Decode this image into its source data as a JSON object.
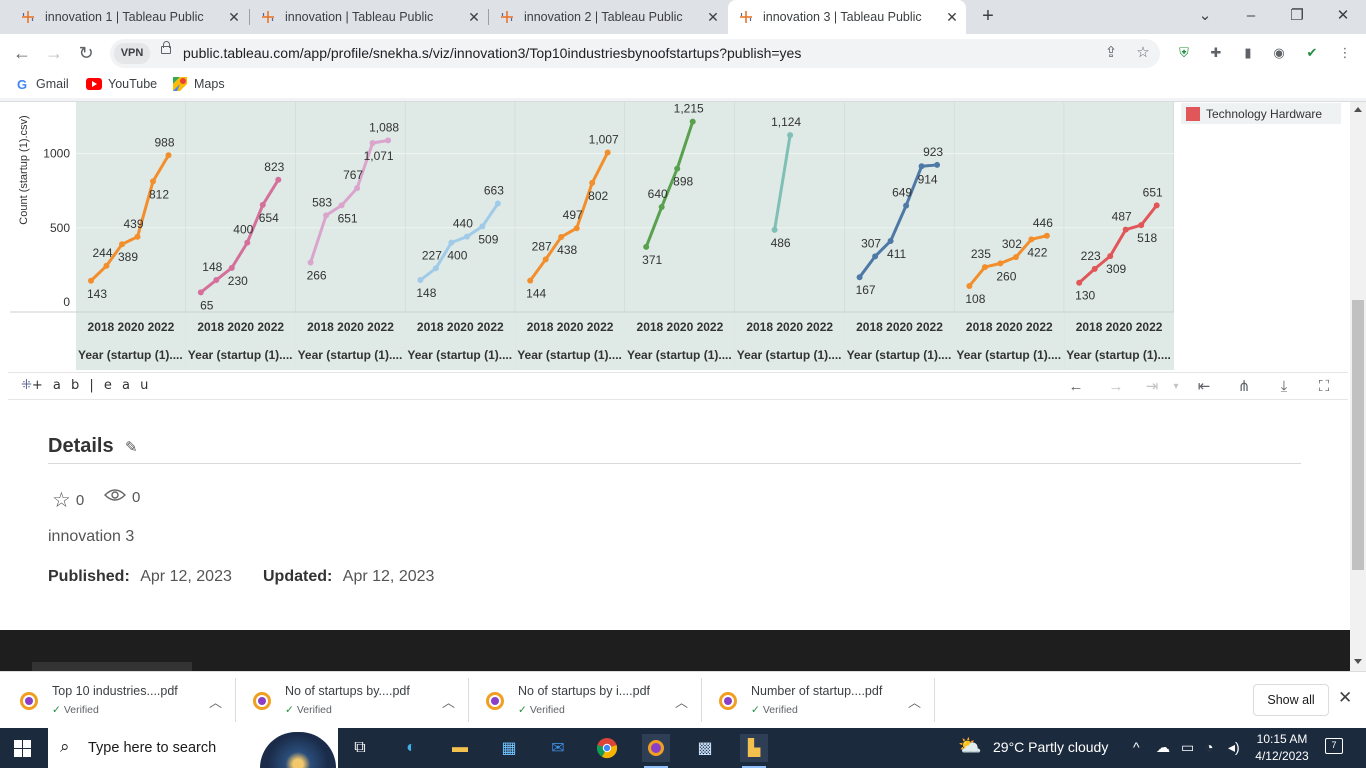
{
  "browser": {
    "tabs": [
      {
        "title": "innovation 1 | Tableau Public",
        "active": false
      },
      {
        "title": "innovation | Tableau Public",
        "active": false
      },
      {
        "title": "innovation 2 | Tableau Public",
        "active": false
      },
      {
        "title": "innovation 3 | Tableau Public",
        "active": true
      }
    ],
    "url": "public.tableau.com/app/profile/snekha.s/viz/innovation3/Top10industriesbynoofstartups?publish=yes",
    "vpn_label": "VPN",
    "bookmarks": [
      {
        "label": "Gmail",
        "icon": "google-icon"
      },
      {
        "label": "YouTube",
        "icon": "youtube-icon"
      },
      {
        "label": "Maps",
        "icon": "maps-icon"
      }
    ]
  },
  "viz": {
    "y_axis_label": "Count (startup (1).csv)",
    "y_ticks": [
      "0",
      "500",
      "1000"
    ],
    "x_tick_label": "2018 2020 2022",
    "x_header": "Year (startup (1)....",
    "legend": [
      {
        "label": "Technology Hardware",
        "color": "#e15759"
      }
    ],
    "toolbar_logo": "+ a b | e a u"
  },
  "chart_data": {
    "type": "line",
    "ylabel": "Count (startup (1).csv)",
    "yticks": [
      0,
      500,
      1000
    ],
    "xlabel": "Year (startup (1)....",
    "panels": [
      {
        "color": "#f28e2b",
        "labels": [
          "143",
          "244",
          "389",
          "439",
          "812",
          "988"
        ],
        "values": [
          143,
          244,
          389,
          439,
          812,
          988
        ]
      },
      {
        "color": "#d4709b",
        "labels": [
          "65",
          "148",
          "230",
          "400",
          "654",
          "823"
        ],
        "values": [
          65,
          148,
          230,
          400,
          654,
          823
        ]
      },
      {
        "color": "#d9a5cc",
        "labels": [
          "266",
          "583",
          "651",
          "767",
          "1,071",
          "1,088"
        ],
        "values": [
          266,
          583,
          651,
          767,
          1071,
          1088
        ]
      },
      {
        "color": "#a0cbe8",
        "labels": [
          "148",
          "227",
          "400",
          "440",
          "509",
          "663"
        ],
        "values": [
          148,
          227,
          400,
          440,
          509,
          663
        ]
      },
      {
        "color": "#f28e2b",
        "labels": [
          "144",
          "287",
          "438",
          "497",
          "802",
          "1,007"
        ],
        "values": [
          144,
          287,
          438,
          497,
          802,
          1007
        ]
      },
      {
        "color": "#59a14f",
        "labels": [
          "371",
          "640",
          "898",
          "1,215"
        ],
        "values": [
          371,
          640,
          898,
          1215
        ]
      },
      {
        "color": "#7fbfb5",
        "labels": [
          "486",
          "1,124"
        ],
        "values": [
          486,
          1124
        ]
      },
      {
        "color": "#4e79a7",
        "labels": [
          "167",
          "307",
          "411",
          "649",
          "914",
          "923"
        ],
        "values": [
          167,
          307,
          411,
          649,
          914,
          923
        ]
      },
      {
        "color": "#f28e2b",
        "labels": [
          "108",
          "235",
          "260",
          "302",
          "422",
          "446"
        ],
        "values": [
          108,
          235,
          260,
          302,
          422,
          446
        ]
      },
      {
        "color": "#e15759",
        "labels": [
          "130",
          "223",
          "309",
          "487",
          "518",
          "651"
        ],
        "values": [
          130,
          223,
          309,
          487,
          518,
          651
        ]
      }
    ]
  },
  "details": {
    "title": "Details",
    "favorites": "0",
    "views": "0",
    "description": "innovation 3",
    "published_label": "Published:",
    "published_date": "Apr 12, 2023",
    "updated_label": "Updated:",
    "updated_date": "Apr 12, 2023"
  },
  "downloads": {
    "items": [
      {
        "name": "Top 10 industries....pdf",
        "status": "Verified"
      },
      {
        "name": "No of startups by....pdf",
        "status": "Verified"
      },
      {
        "name": "No of startups by i....pdf",
        "status": "Verified"
      },
      {
        "name": "Number of startup....pdf",
        "status": "Verified"
      }
    ],
    "show_all": "Show all"
  },
  "taskbar": {
    "search_placeholder": "Type here to search",
    "weather": "29°C  Partly cloudy",
    "time": "10:15 AM",
    "date": "4/12/2023",
    "notifications": "7"
  }
}
